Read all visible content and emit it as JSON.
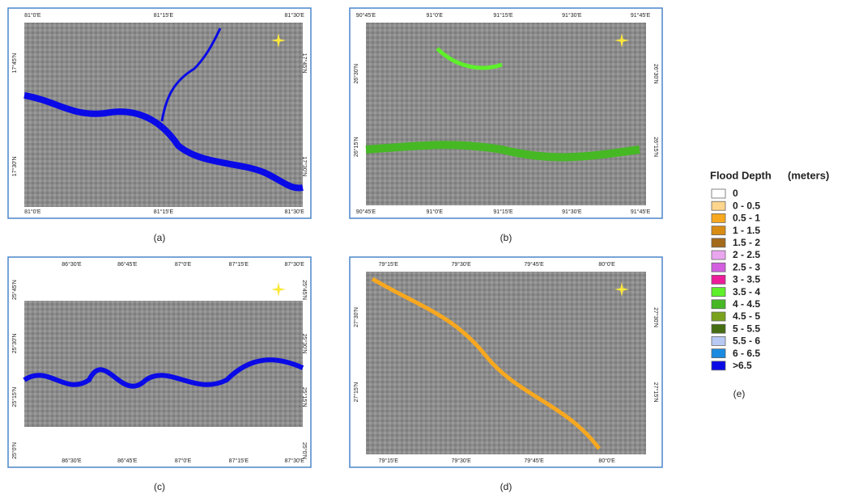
{
  "panels": [
    {
      "label": "(a)",
      "lon_labels": [
        "81°0'E",
        "81°15'E",
        "81°30'E"
      ],
      "lat_labels": [
        "17°45'N",
        "17°30'N"
      ]
    },
    {
      "label": "(b)",
      "lon_labels": [
        "90°45'E",
        "91°0'E",
        "91°15'E",
        "91°30'E",
        "91°45'E"
      ],
      "lat_labels": [
        "26°30'N",
        "26°15'N"
      ]
    },
    {
      "label": "(c)",
      "lon_labels": [
        "86°30'E",
        "86°45'E",
        "87°0'E",
        "87°15'E",
        "87°30'E"
      ],
      "lat_labels": [
        "25°45'N",
        "25°30'N",
        "25°15'N",
        "25°0'N"
      ]
    },
    {
      "label": "(d)",
      "lon_labels": [
        "79°15'E",
        "79°30'E",
        "79°45'E",
        "80°0'E"
      ],
      "lat_labels": [
        "27°30'N",
        "27°15'N"
      ]
    }
  ],
  "legend": {
    "title": "Flood Depth",
    "unit": "(meters)",
    "label": "(e)",
    "items": [
      {
        "label": "0",
        "color": "#ffffff"
      },
      {
        "label": "0 - 0.5",
        "color": "#fdd58c"
      },
      {
        "label": "0.5 - 1",
        "color": "#f7a81f"
      },
      {
        "label": "1 - 1.5",
        "color": "#d98c14"
      },
      {
        "label": "1.5 - 2",
        "color": "#a36a1c"
      },
      {
        "label": "2 - 2.5",
        "color": "#e9a6ef"
      },
      {
        "label": "2.5 - 3",
        "color": "#d35ee0"
      },
      {
        "label": "3 - 3.5",
        "color": "#ec1c9a"
      },
      {
        "label": "3.5 - 4",
        "color": "#5ef02a"
      },
      {
        "label": "4 - 4.5",
        "color": "#46b824"
      },
      {
        "label": "4.5 - 5",
        "color": "#7aa21c"
      },
      {
        "label": "5 - 5.5",
        "color": "#456e12"
      },
      {
        "label": "5.5 - 6",
        "color": "#b7c9f3"
      },
      {
        "label": "6 - 6.5",
        "color": "#1a8ae0"
      },
      {
        "label": ">6.5",
        "color": "#0a0ae6"
      }
    ]
  }
}
